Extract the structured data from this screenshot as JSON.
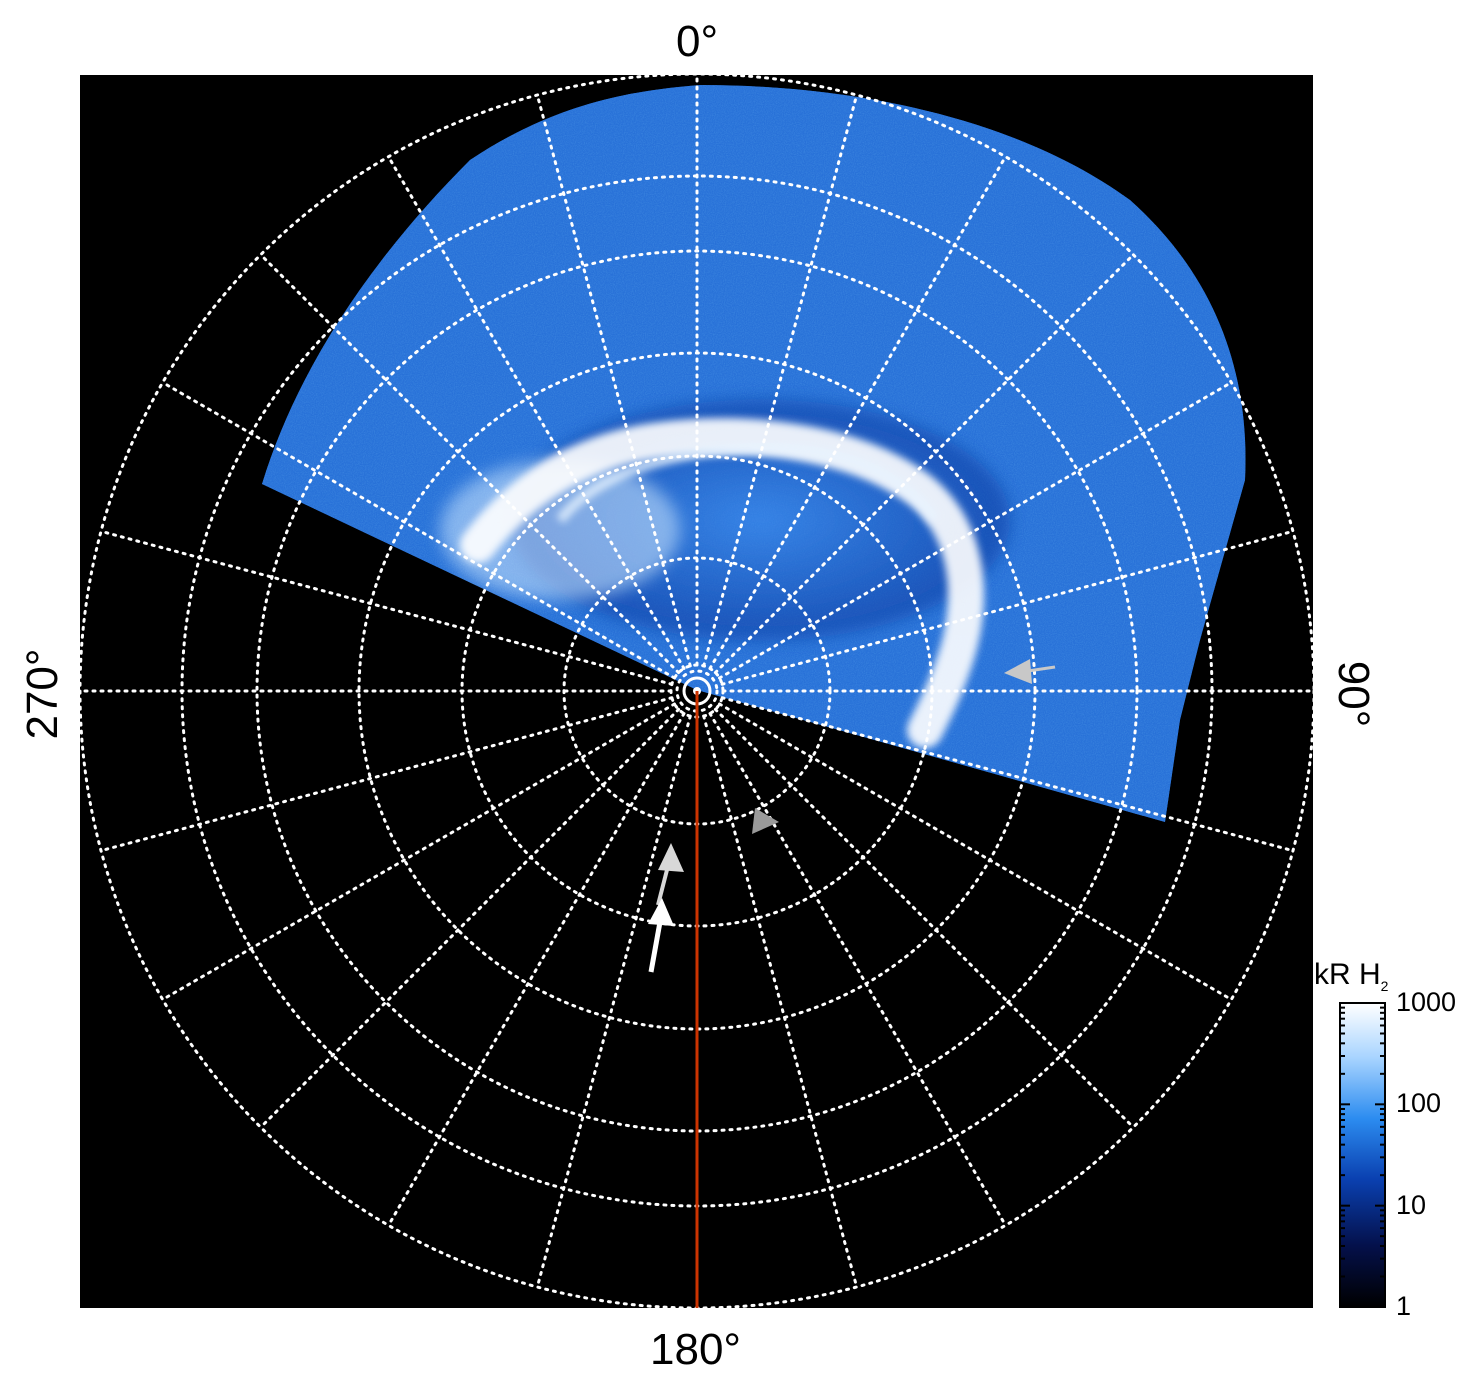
{
  "figure": {
    "polar_plot": {
      "longitude_labels": {
        "top": "0°",
        "right": "90°",
        "bottom": "180°",
        "left": "270°"
      },
      "background_color": "#000000",
      "grid_color": "#ffffff",
      "grid_style": "dotted",
      "meridian_line_color": "#cc3300",
      "aurora_colors": [
        "#0a1e6e",
        "#1f6fe0",
        "#4da3ff",
        "#cfe8ff",
        "#ffffff"
      ],
      "markers": [
        {
          "name": "gray-arrow-right",
          "color": "#c8c8c8"
        },
        {
          "name": "gray-arrow-lower",
          "color": "#9a9a9a"
        },
        {
          "name": "light-gray-arrow",
          "color": "#d8d8d8"
        },
        {
          "name": "white-arrow",
          "color": "#ffffff"
        }
      ]
    },
    "colorbar": {
      "title": "kR H",
      "title_subscript": "2",
      "scale": "log",
      "range": [
        1,
        1000
      ],
      "ticks": [
        "1000",
        "100",
        "10",
        "1"
      ],
      "colors": [
        "#ffffff",
        "#a8d4ff",
        "#2c8cf0",
        "#0a40b0",
        "#04104a",
        "#000000"
      ]
    }
  }
}
